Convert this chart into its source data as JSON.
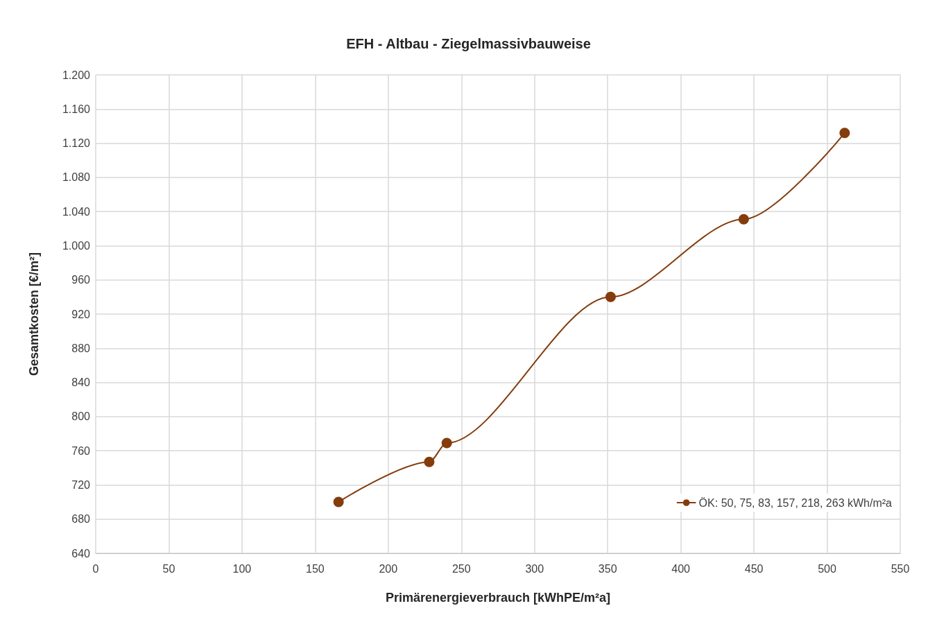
{
  "chart_data": {
    "type": "line",
    "title": "EFH - Altbau - Ziegelmassivbauweise",
    "xlabel": "Primärenergieverbrauch [kWhPE/m²a]",
    "ylabel": "Gesamtkosten [€/m²]",
    "x": [
      166,
      228,
      240,
      352,
      443,
      512
    ],
    "series": [
      {
        "name": "ÖK: 50, 75, 83, 157, 218, 263 kWh/m²a",
        "color": "#843c0c",
        "values": [
          700,
          747,
          769,
          940,
          1031,
          1132
        ]
      }
    ],
    "xlim": [
      0,
      550
    ],
    "xticks": [
      0,
      50,
      100,
      150,
      200,
      250,
      300,
      350,
      400,
      450,
      500,
      550
    ],
    "ylim": [
      640,
      1200
    ],
    "yticks": [
      640,
      680,
      720,
      760,
      800,
      840,
      880,
      920,
      960,
      {
        "value": 1000,
        "label": "1.000"
      },
      {
        "value": 1040,
        "label": "1.040"
      },
      {
        "value": 1080,
        "label": "1.080"
      },
      {
        "value": 1120,
        "label": "1.120"
      },
      {
        "value": 1160,
        "label": "1.160"
      },
      {
        "value": 1200,
        "label": "1.200"
      }
    ],
    "grid": true,
    "legend": "bottom right",
    "marker": "circle",
    "line_style": "solid"
  }
}
